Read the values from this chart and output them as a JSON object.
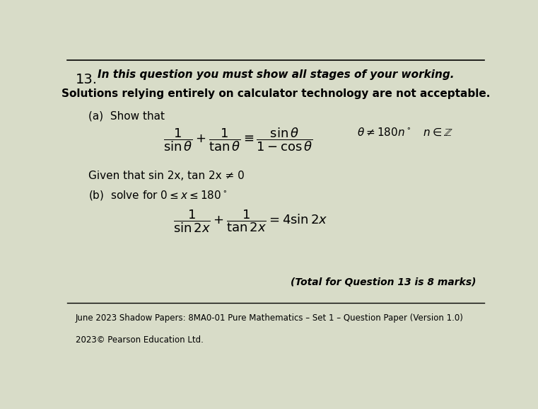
{
  "bg_color": "#d8dcc8",
  "question_number": "13.",
  "line1": "In this question you must show all stages of your working.",
  "line2": "Solutions relying entirely on calculator technology are not acceptable.",
  "part_a_label": "(a)  Show that",
  "formula_a": "$\\dfrac{1}{\\sin\\theta} + \\dfrac{1}{\\tan\\theta} \\equiv \\dfrac{\\sin\\theta}{1-\\cos\\theta}$",
  "formula_a_condition": "$\\theta \\neq 180n^\\circ \\quad n \\in \\mathbb{Z}$",
  "given_text": "Given that sin 2x, tan 2x ≠ 0",
  "part_b_label": "(b)  solve for $0 \\leq x \\leq 180^\\circ$",
  "formula_b": "$\\dfrac{1}{\\sin 2x} + \\dfrac{1}{\\tan 2x} = 4\\sin 2x$",
  "total_marks": "(Total for Question 13 is 8 marks)",
  "footer1": "June 2023 Shadow Papers: 8MA0-01 Pure Mathematics – Set 1 – Question Paper (Version 1.0)",
  "footer2": "2023© Pearson Education Ltd."
}
